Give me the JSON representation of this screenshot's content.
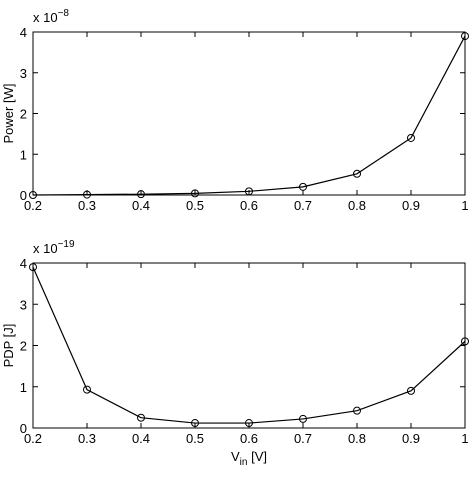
{
  "chart_data": [
    {
      "type": "line",
      "ylabel": "Power [W]",
      "multiplier_base": "x 10",
      "multiplier_exponent": "−8",
      "x": [
        0.2,
        0.3,
        0.4,
        0.5,
        0.6,
        0.7,
        0.8,
        0.9,
        1
      ],
      "values": [
        0.0,
        0.01,
        0.02,
        0.04,
        0.09,
        0.2,
        0.52,
        1.4,
        3.9
      ],
      "color": "#000000",
      "xlim": [
        0.2,
        1
      ],
      "xticks": [
        0.2,
        0.3,
        0.4,
        0.5,
        0.6,
        0.7,
        0.8,
        0.9,
        1
      ],
      "ylim": [
        0,
        4
      ],
      "yticks": [
        0,
        1,
        2,
        3,
        4
      ]
    },
    {
      "type": "line",
      "ylabel": "PDP [J]",
      "xlabel": [
        "V",
        "in",
        " [V]"
      ],
      "multiplier_base": "x 10",
      "multiplier_exponent": "−19",
      "x": [
        0.2,
        0.3,
        0.4,
        0.5,
        0.6,
        0.7,
        0.8,
        0.9,
        1
      ],
      "values": [
        3.9,
        0.93,
        0.25,
        0.12,
        0.12,
        0.22,
        0.42,
        0.9,
        2.1
      ],
      "color": "#000000",
      "xlim": [
        0.2,
        1
      ],
      "xticks": [
        0.2,
        0.3,
        0.4,
        0.5,
        0.6,
        0.7,
        0.8,
        0.9,
        1
      ],
      "ylim": [
        0,
        4
      ],
      "yticks": [
        0,
        1,
        2,
        3,
        4
      ]
    }
  ]
}
